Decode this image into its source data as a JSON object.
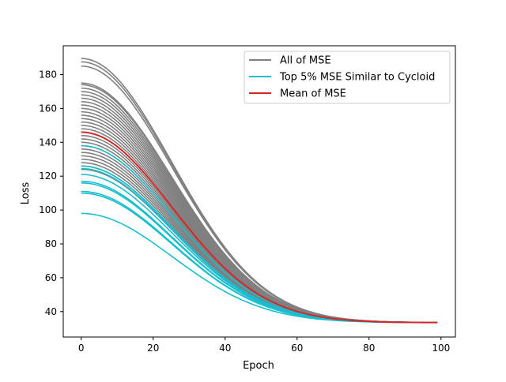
{
  "chart_data": {
    "type": "line",
    "title": "",
    "xlabel": "Epoch",
    "ylabel": "Loss",
    "xlim": [
      -5,
      104
    ],
    "ylim": [
      25,
      197
    ],
    "xticks": [
      0,
      20,
      40,
      60,
      80,
      100
    ],
    "yticks": [
      40,
      60,
      80,
      100,
      120,
      140,
      160,
      180
    ],
    "grid": false,
    "legend_position": "top-right",
    "legend": [
      {
        "label": "All of MSE",
        "color": "#808080"
      },
      {
        "label": "Top 5% MSE Similar to Cycloid",
        "color": "#17becf"
      },
      {
        "label": "Mean of MSE",
        "color": "#d62728"
      }
    ],
    "series": [
      {
        "name": "All of MSE",
        "color": "#808080",
        "x_start": 0,
        "x_end": 99,
        "start_values": [
          189.5,
          187.5,
          185,
          175,
          174,
          172,
          170,
          168,
          166,
          164,
          162,
          160,
          158,
          156,
          154,
          152,
          150,
          148,
          146,
          144,
          142,
          140,
          138,
          136,
          134,
          132,
          130,
          128,
          126,
          124
        ],
        "end_value": 33.5
      },
      {
        "name": "Top 5% MSE Similar to Cycloid",
        "color": "#17becf",
        "x_start": 0,
        "x_end": 99,
        "start_values": [
          138,
          126,
          124.5,
          121,
          117,
          116,
          111,
          110,
          98
        ],
        "end_value": 33.5
      },
      {
        "name": "Mean of MSE",
        "color": "#d62728",
        "x_start": 0,
        "x_end": 99,
        "start_values": [
          146
        ],
        "end_value": 33.5
      }
    ]
  }
}
